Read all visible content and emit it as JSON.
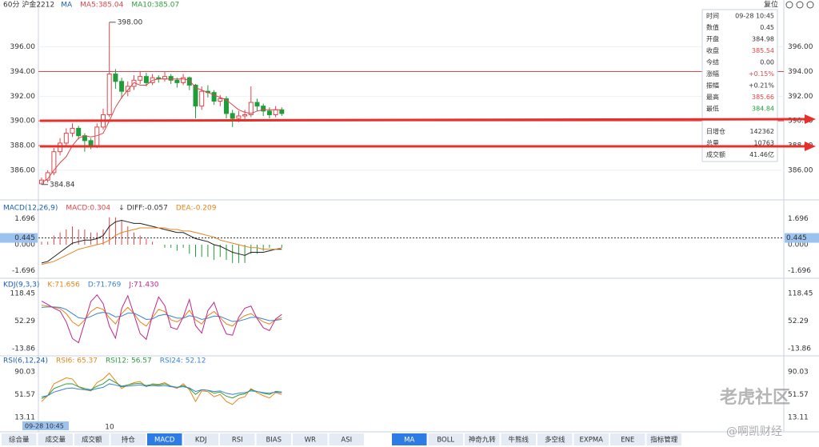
{
  "main": {
    "title": "60分 沪金2212",
    "legend": [
      {
        "text": "MA",
        "color": "#1a5fb4"
      },
      {
        "text": "MA5:385.04",
        "color": "#e0464c"
      },
      {
        "text": "MA10:385.07",
        "color": "#2e9e3e"
      }
    ],
    "ylim": [
      384.5,
      398.7
    ],
    "yticks": [
      {
        "value": 386,
        "label": "386.00"
      },
      {
        "value": 388,
        "label": "388.00"
      },
      {
        "value": 390,
        "label": "390.00"
      },
      {
        "value": 392,
        "label": "392.00"
      },
      {
        "value": 394,
        "label": "394.00"
      },
      {
        "value": 396,
        "label": "396.00"
      }
    ],
    "price_lines": [
      394,
      390,
      388
    ],
    "extremes": [
      {
        "value": 398,
        "label": "398.00"
      },
      {
        "value": 384.84,
        "label": "384.84"
      }
    ],
    "up_color": "#e0464c",
    "down_color": "#1f9d3a",
    "candles": {
      "open": [
        384.9,
        385.2,
        385.8,
        387.5,
        388.2,
        389.0,
        389.4,
        388.8,
        388.4,
        388.0,
        389.5,
        390.5,
        393.8,
        393.2,
        392.4,
        392.8,
        393.3,
        393.6,
        393.1,
        393.5,
        393.4,
        393.6,
        393.3,
        393.1,
        393.5,
        392.9,
        391.2,
        392.4,
        392.3,
        391.6,
        391.8,
        390.6,
        390.2,
        390.4,
        390.5,
        391.5,
        391.2,
        390.8,
        390.5,
        390.9
      ],
      "high": [
        385.4,
        386.0,
        387.8,
        388.6,
        389.4,
        389.8,
        389.6,
        389.0,
        388.6,
        389.8,
        391.0,
        398.0,
        394.2,
        393.5,
        393.2,
        393.7,
        394.0,
        393.9,
        393.8,
        393.7,
        394.0,
        393.8,
        393.5,
        393.8,
        393.6,
        393.0,
        392.8,
        392.9,
        392.5,
        392.1,
        392.0,
        390.9,
        390.8,
        390.9,
        392.8,
        391.8,
        391.4,
        391.1,
        391.2,
        391.1
      ],
      "low": [
        384.84,
        385.0,
        385.6,
        387.2,
        387.9,
        388.7,
        388.5,
        387.5,
        387.7,
        387.8,
        389.3,
        390.3,
        392.6,
        391.8,
        392.0,
        392.5,
        393.0,
        392.8,
        392.9,
        393.1,
        393.2,
        393.0,
        392.7,
        392.9,
        392.5,
        390.2,
        390.9,
        391.9,
        391.3,
        391.2,
        390.2,
        389.5,
        389.9,
        390.1,
        390.3,
        390.8,
        390.4,
        390.2,
        390.3,
        390.4
      ],
      "close": [
        385.2,
        385.8,
        387.5,
        388.2,
        389.0,
        389.4,
        388.8,
        388.4,
        388.0,
        389.5,
        390.5,
        393.8,
        393.2,
        392.4,
        392.8,
        393.3,
        393.6,
        393.1,
        393.5,
        393.4,
        393.6,
        393.3,
        393.1,
        393.5,
        392.9,
        391.2,
        392.4,
        392.3,
        391.6,
        391.8,
        390.6,
        390.2,
        390.4,
        390.5,
        391.5,
        391.2,
        390.8,
        390.5,
        390.9,
        390.6
      ]
    },
    "ma5": [
      385.0,
      385.3,
      386.0,
      386.6,
      387.1,
      388.0,
      388.6,
      388.8,
      388.7,
      388.8,
      389.0,
      390.0,
      391.1,
      391.9,
      392.5,
      393.1,
      392.9,
      392.9,
      393.3,
      393.4,
      393.4,
      393.4,
      393.4,
      393.4,
      393.3,
      392.7,
      392.5,
      392.3,
      392.1,
      391.9,
      391.7,
      391.3,
      390.9,
      390.7,
      390.6,
      390.8,
      390.9,
      390.9,
      390.9,
      390.9
    ],
    "ma5_color": "#e0464c"
  },
  "top_right": "复位",
  "info": [
    {
      "label": "时间",
      "value": "09-28 10:45",
      "color": "#333333"
    },
    {
      "label": "数值",
      "value": "0.45",
      "color": "#333333"
    },
    {
      "label": "开盘",
      "value": "384.98",
      "color": "#333333"
    },
    {
      "label": "收盘",
      "value": "385.54",
      "color": "#e0464c"
    },
    {
      "label": "今结",
      "value": "0.00",
      "color": "#333333"
    },
    {
      "label": "涨幅",
      "value": "+0.15%",
      "color": "#e0464c"
    },
    {
      "label": "振幅",
      "value": "+0.21%",
      "color": "#333333"
    },
    {
      "label": "最高",
      "value": "385.66",
      "color": "#e0464c"
    },
    {
      "label": "最低",
      "value": "384.84",
      "color": "#1f9d3a"
    },
    {
      "label": "日增仓",
      "value": "142362",
      "color": "#333333"
    },
    {
      "label": "总量",
      "value": "10763",
      "color": "#333333"
    },
    {
      "label": "成交额",
      "value": "41.46亿",
      "color": "#333333"
    }
  ],
  "macd": {
    "legend": [
      {
        "text": "MACD(12,26,9)",
        "color": "#1a5fb4"
      },
      {
        "text": "MACD:0.304",
        "color": "#e0464c"
      },
      {
        "text": "↓ DIFF:-0.057",
        "color": "#333333"
      },
      {
        "text": "DEA:-0.209",
        "color": "#e8841a"
      }
    ],
    "ylim": [
      -2.1,
      2.1
    ],
    "yticks": [
      -1.696,
      {
        "value": 0,
        "label": "0.000"
      },
      1.696
    ],
    "crosshair": 0.445,
    "hist": [
      0.2,
      0.2,
      0.6,
      0.8,
      1.0,
      1.2,
      1.0,
      1.0,
      0.8,
      0.8,
      1.0,
      1.8,
      1.8,
      1.6,
      1.2,
      0.8,
      0.6,
      0.4,
      0.2,
      0.0,
      -0.2,
      -0.2,
      -0.4,
      -0.2,
      -0.6,
      -0.8,
      -0.8,
      -0.8,
      -1.0,
      -0.8,
      -1.0,
      -1.2,
      -1.2,
      -1.2,
      -0.6,
      -0.6,
      -0.4,
      -0.2,
      0.0,
      -0.2
    ],
    "series": [
      {
        "name": "DIFF",
        "color": "#222222",
        "values": [
          -1.2,
          -1.1,
          -0.8,
          -0.5,
          -0.2,
          0.1,
          0.2,
          0.3,
          0.3,
          0.4,
          0.6,
          1.2,
          1.5,
          1.6,
          1.5,
          1.4,
          1.4,
          1.3,
          1.2,
          1.1,
          1.0,
          0.9,
          0.8,
          0.8,
          0.6,
          0.4,
          0.3,
          0.2,
          0.0,
          -0.1,
          -0.3,
          -0.5,
          -0.6,
          -0.7,
          -0.5,
          -0.5,
          -0.5,
          -0.4,
          -0.3,
          -0.3
        ]
      },
      {
        "name": "DEA",
        "color": "#e8841a",
        "values": [
          -1.3,
          -1.2,
          -1.1,
          -0.9,
          -0.7,
          -0.5,
          -0.3,
          -0.2,
          -0.1,
          0.0,
          0.1,
          0.3,
          0.6,
          0.8,
          0.9,
          1.0,
          1.1,
          1.1,
          1.1,
          1.1,
          1.1,
          1.0,
          1.0,
          0.9,
          0.9,
          0.8,
          0.7,
          0.6,
          0.5,
          0.3,
          0.2,
          0.1,
          0.0,
          -0.1,
          -0.2,
          -0.2,
          -0.3,
          -0.3,
          -0.3,
          -0.2
        ]
      }
    ]
  },
  "kdj": {
    "legend": [
      {
        "text": "KDJ(9,3,3)",
        "color": "#1a5fb4"
      },
      {
        "text": "K:71.656",
        "color": "#e8841a"
      },
      {
        "text": "D:71.769",
        "color": "#3b82d6"
      },
      {
        "text": "J:71.430",
        "color": "#c0278f"
      }
    ],
    "ylim": [
      -22,
      128
    ],
    "yticks": [
      -13.86,
      52.29,
      118.45
    ],
    "series": [
      {
        "name": "K",
        "color": "#e8841a",
        "values": [
          90,
          88,
          85,
          82,
          70,
          50,
          40,
          55,
          75,
          85,
          80,
          60,
          45,
          70,
          85,
          70,
          50,
          40,
          60,
          80,
          75,
          55,
          50,
          60,
          78,
          55,
          45,
          65,
          75,
          60,
          45,
          40,
          55,
          65,
          70,
          60,
          50,
          45,
          55,
          60
        ]
      },
      {
        "name": "D",
        "color": "#3b82d6",
        "values": [
          85,
          86,
          86,
          85,
          80,
          70,
          60,
          58,
          63,
          70,
          73,
          70,
          62,
          64,
          71,
          71,
          64,
          56,
          57,
          65,
          68,
          64,
          59,
          59,
          65,
          62,
          56,
          59,
          64,
          63,
          57,
          51,
          52,
          56,
          61,
          61,
          57,
          53,
          54,
          56
        ]
      },
      {
        "name": "J",
        "color": "#c0278f",
        "values": [
          100,
          92,
          83,
          76,
          50,
          10,
          0,
          49,
          99,
          115,
          94,
          40,
          11,
          82,
          113,
          68,
          22,
          8,
          66,
          110,
          89,
          37,
          32,
          62,
          104,
          41,
          23,
          77,
          97,
          54,
          21,
          18,
          61,
          83,
          88,
          58,
          36,
          29,
          57,
          68
        ]
      }
    ]
  },
  "rsi": {
    "legend": [
      {
        "text": "RSI(6,12,24)",
        "color": "#1a5fb4"
      },
      {
        "text": "RSI6: 65.37",
        "color": "#e8841a"
      },
      {
        "text": "RSI12: 56.57",
        "color": "#2e9e3e"
      },
      {
        "text": "RSI24: 52.12",
        "color": "#3b82d6"
      }
    ],
    "ylim": [
      5,
      97
    ],
    "yticks": [
      13.11,
      51.57,
      90.03
    ],
    "series": [
      {
        "name": "RSI6",
        "color": "#e8841a",
        "values": [
          40,
          50,
          70,
          75,
          80,
          78,
          65,
          60,
          58,
          72,
          78,
          88,
          75,
          62,
          68,
          72,
          74,
          65,
          70,
          69,
          72,
          66,
          62,
          70,
          60,
          40,
          58,
          57,
          48,
          52,
          40,
          35,
          45,
          48,
          62,
          55,
          50,
          46,
          55,
          52
        ]
      },
      {
        "name": "RSI12",
        "color": "#2e9e3e",
        "values": [
          45,
          50,
          62,
          66,
          70,
          70,
          65,
          62,
          60,
          66,
          70,
          78,
          72,
          66,
          68,
          70,
          71,
          67,
          69,
          68,
          70,
          66,
          64,
          67,
          62,
          52,
          60,
          59,
          54,
          56,
          49,
          46,
          51,
          53,
          60,
          57,
          54,
          52,
          57,
          56
        ]
      },
      {
        "name": "RSI24",
        "color": "#3b82d6",
        "values": [
          48,
          50,
          56,
          59,
          62,
          63,
          61,
          60,
          59,
          62,
          64,
          70,
          68,
          65,
          66,
          67,
          68,
          66,
          67,
          66,
          67,
          65,
          64,
          65,
          63,
          57,
          60,
          59,
          57,
          58,
          54,
          52,
          54,
          55,
          58,
          57,
          55,
          54,
          56,
          55
        ]
      }
    ]
  },
  "x_label": "10",
  "cursor_time": "09-28 10:45",
  "tabs_left": [
    "综合量",
    "成交量",
    "成交额",
    "持仓",
    "MACD",
    "KDJ",
    "RSI",
    "BIAS",
    "WR",
    "ASI"
  ],
  "tabs_left_active": 4,
  "tabs_right": [
    "MA",
    "BOLL",
    "神奇九转",
    "牛熊线",
    "多空线",
    "EXPMA",
    "ENE",
    "指标管理"
  ],
  "tabs_right_active": 0,
  "watermark": [
    "老虎社区",
    "@啊凯财经"
  ]
}
